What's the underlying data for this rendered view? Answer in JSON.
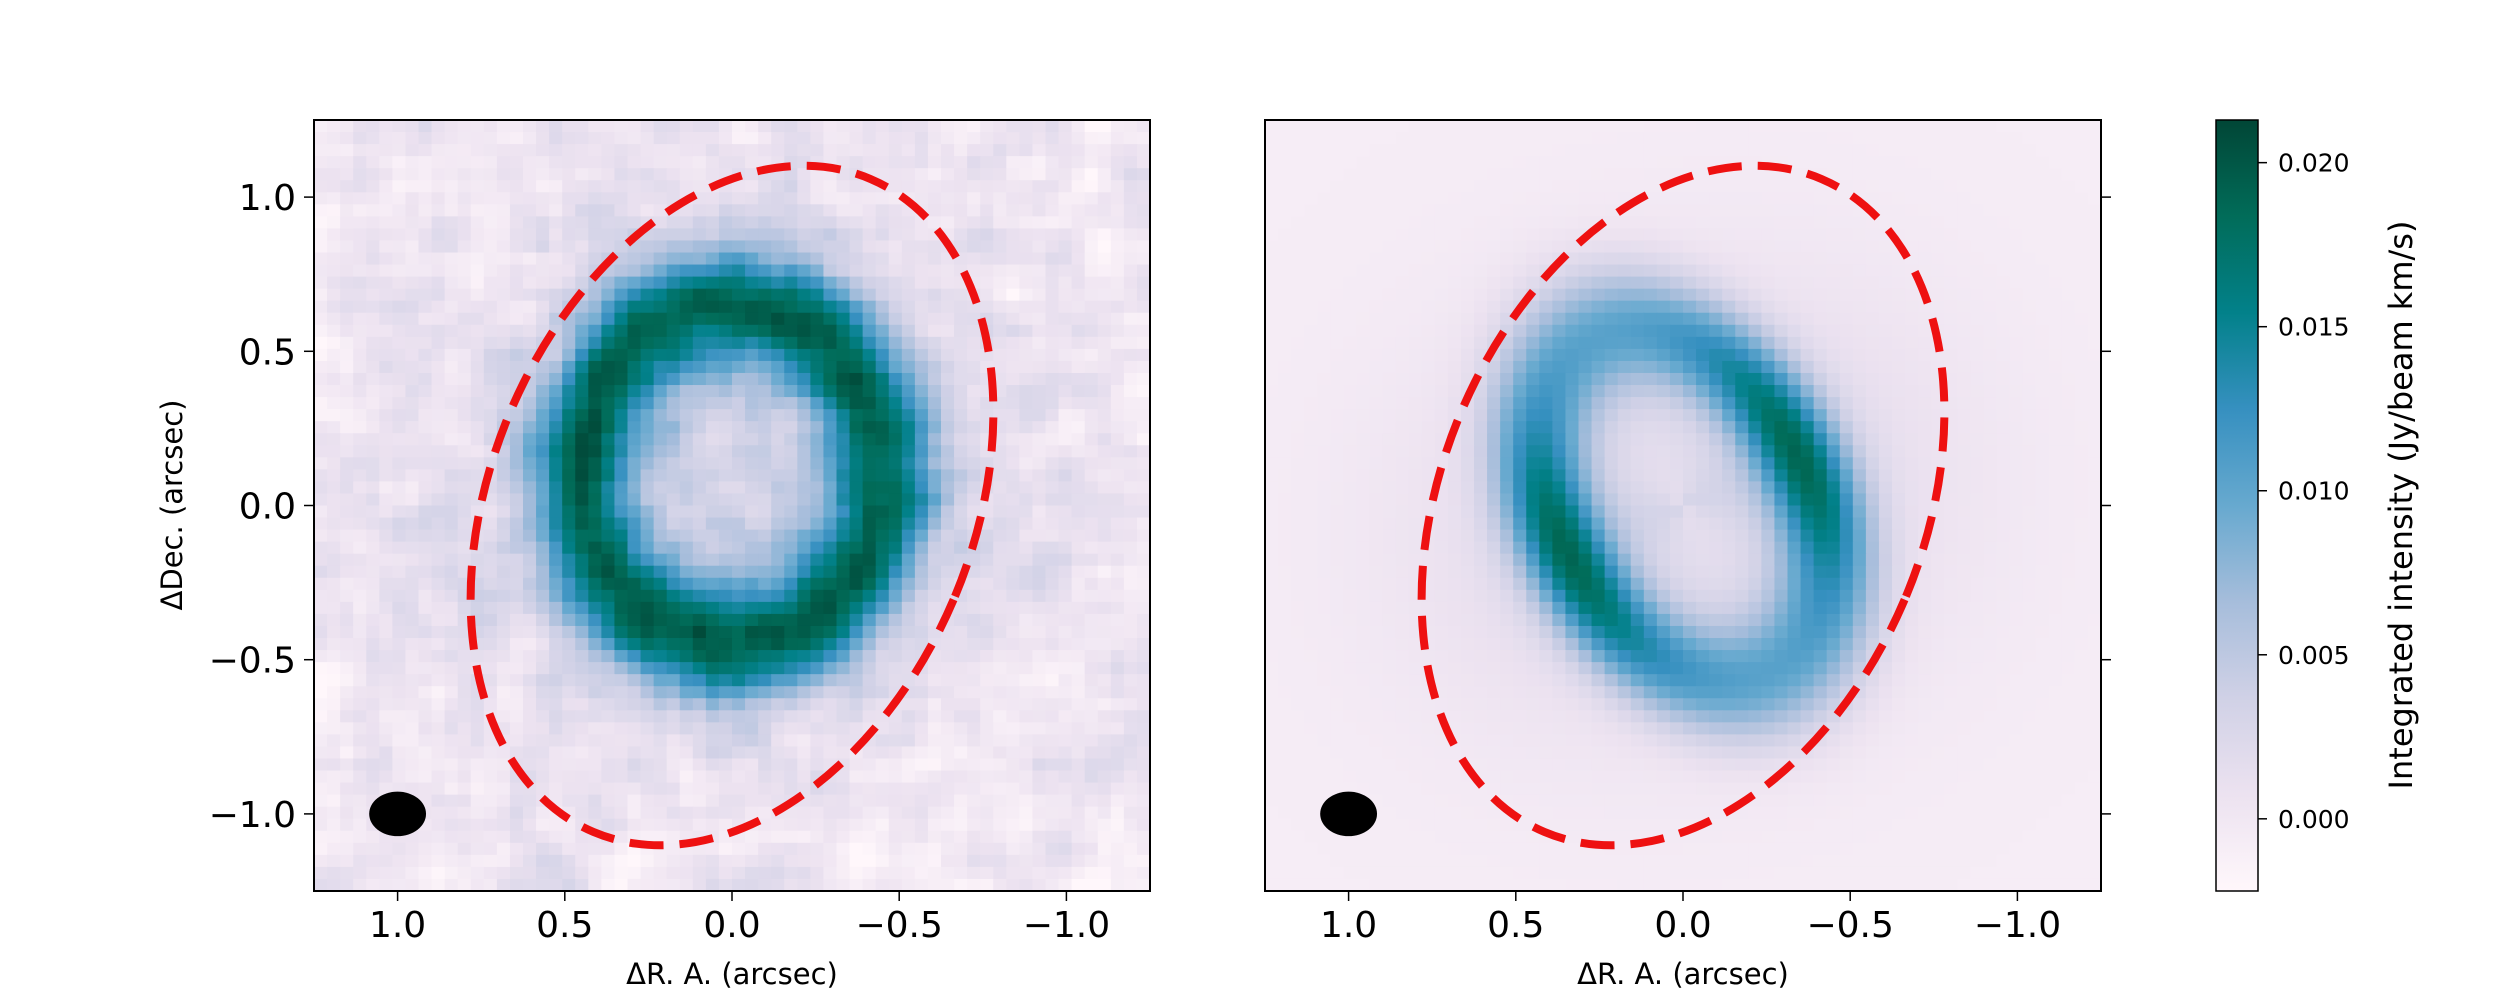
{
  "chart_data": [
    {
      "type": "heatmap",
      "panel": "left",
      "xlabel": "ΔR. A.  (arcsec)",
      "ylabel": "ΔDec.  (arcsec)",
      "xlim": [
        1.25,
        -1.25
      ],
      "ylim": [
        -1.25,
        1.25
      ],
      "x_ticks": [
        1.0,
        0.5,
        0.0,
        -0.5,
        -1.0
      ],
      "x_tick_labels": [
        "1.0",
        "0.5",
        "0.0",
        "−0.5",
        "−1.0"
      ],
      "y_ticks": [
        1.0,
        0.5,
        0.0,
        -0.5,
        -1.0
      ],
      "y_tick_labels": [
        "1.0",
        "0.5",
        "0.0",
        "−0.5",
        "−1.0"
      ],
      "ellipse": {
        "center": [
          0.0,
          0.0
        ],
        "semi_major": 1.15,
        "semi_minor": 0.72,
        "position_angle_deg": 23,
        "color": "#ee1111",
        "style": "dashed"
      },
      "beam": {
        "x": 1.0,
        "y": -1.0,
        "major": 0.2,
        "minor": 0.17,
        "color": "#000000"
      },
      "ring": {
        "center": [
          0.0,
          0.1
        ],
        "radius_major": 0.55,
        "radius_minor": 0.45,
        "width": 0.25,
        "peak": 0.02
      },
      "noisy": true
    },
    {
      "type": "heatmap",
      "panel": "right",
      "xlabel": "ΔR. A.  (arcsec)",
      "ylabel": "",
      "xlim": [
        1.25,
        -1.25
      ],
      "ylim": [
        -1.25,
        1.25
      ],
      "x_ticks": [
        1.0,
        0.5,
        0.0,
        -0.5,
        -1.0
      ],
      "x_tick_labels": [
        "1.0",
        "0.5",
        "0.0",
        "−0.5",
        "−1.0"
      ],
      "y_ticks": [
        1.0,
        0.5,
        0.0,
        -0.5,
        -1.0
      ],
      "y_tick_labels": [],
      "ellipse": {
        "center": [
          0.0,
          0.0
        ],
        "semi_major": 1.15,
        "semi_minor": 0.72,
        "position_angle_deg": 23,
        "color": "#ee1111",
        "style": "dashed"
      },
      "beam": {
        "x": 1.0,
        "y": -1.0,
        "major": 0.2,
        "minor": 0.17,
        "color": "#000000"
      },
      "ring": {
        "center": [
          0.0,
          0.0
        ],
        "radius_major": 0.6,
        "radius_minor": 0.38,
        "width": 0.22,
        "position_angle_deg": 25,
        "peak": 0.0195
      },
      "noisy": false
    }
  ],
  "colorbar": {
    "label": "Integrated intensity (Jy/beam km/s)",
    "range": [
      -0.0022,
      0.0213
    ],
    "ticks": [
      0.0,
      0.005,
      0.01,
      0.015,
      0.02
    ],
    "tick_labels": [
      "0.000",
      "0.005",
      "0.010",
      "0.015",
      "0.020"
    ],
    "colormap": "PuBuGn",
    "colors": [
      "#fff7fb",
      "#ece2f0",
      "#d0d1e6",
      "#a6bddb",
      "#67a9cf",
      "#3690c0",
      "#02818a",
      "#016c59",
      "#014636"
    ]
  }
}
